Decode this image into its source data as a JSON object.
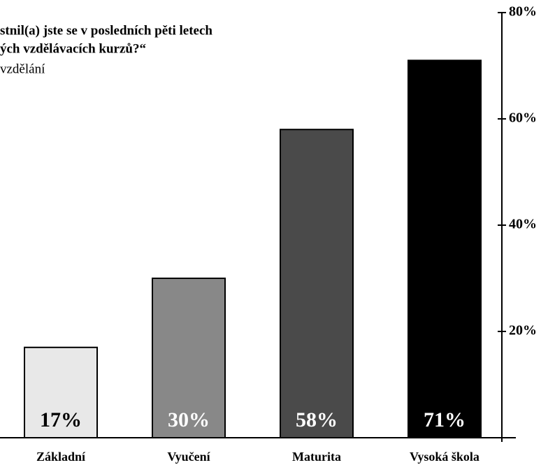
{
  "chart_data": {
    "type": "bar",
    "title_lines": [
      "stnil(a) jste se v posledních pěti letech",
      "ých vzdělávacích kurzů?“"
    ],
    "subtitle": "vzdělání",
    "categories": [
      "Základní",
      "Vyučení",
      "Maturita",
      "Vysoká škola"
    ],
    "values": [
      17,
      30,
      58,
      71
    ],
    "value_labels": [
      "17%",
      "30%",
      "58%",
      "71%"
    ],
    "colors": [
      "#e8e8e8",
      "#888888",
      "#4a4a4a",
      "#000000"
    ],
    "ylim": [
      0,
      80
    ],
    "yticks": [
      {
        "value": 20,
        "label": "20%"
      },
      {
        "value": 40,
        "label": "40%"
      },
      {
        "value": 60,
        "label": "60%"
      },
      {
        "value": 80,
        "label": "80%"
      }
    ],
    "axis_side": "right"
  }
}
